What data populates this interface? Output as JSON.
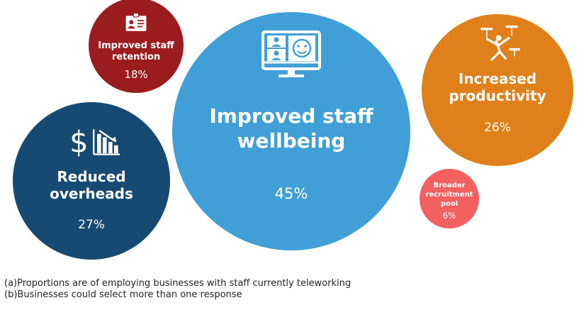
{
  "chart_data": {
    "type": "bubble",
    "title": "",
    "value_unit": "%",
    "series": [
      {
        "name": "Improved staff wellbeing",
        "label_lines": [
          "Improved staff",
          "wellbeing"
        ],
        "value": 45,
        "value_label": "45%",
        "color": "#409fd6",
        "icon": "video-conference-icon"
      },
      {
        "name": "Reduced overheads",
        "label_lines": [
          "Reduced",
          "overheads"
        ],
        "value": 27,
        "value_label": "27%",
        "color": "#174a72",
        "icon": "dollar-chart-down-icon"
      },
      {
        "name": "Increased productivity",
        "label_lines": [
          "Increased",
          "productivity"
        ],
        "value": 26,
        "value_label": "26%",
        "color": "#e0801a",
        "icon": "juggling-icon"
      },
      {
        "name": "Improved staff retention",
        "label_lines": [
          "Improved staff",
          "retention"
        ],
        "value": 18,
        "value_label": "18%",
        "color": "#9b1c1f",
        "icon": "id-badge-icon"
      },
      {
        "name": "Broader recruitment pool",
        "label_lines": [
          "Broader",
          "recruitment",
          "pool"
        ],
        "value": 6,
        "value_label": "6%",
        "color": "#f26060",
        "icon": ""
      }
    ]
  },
  "footnotes": {
    "a": "(a)Proportions are of employing businesses with staff currently teleworking",
    "b": "(b)Businesses could select more than one response"
  }
}
